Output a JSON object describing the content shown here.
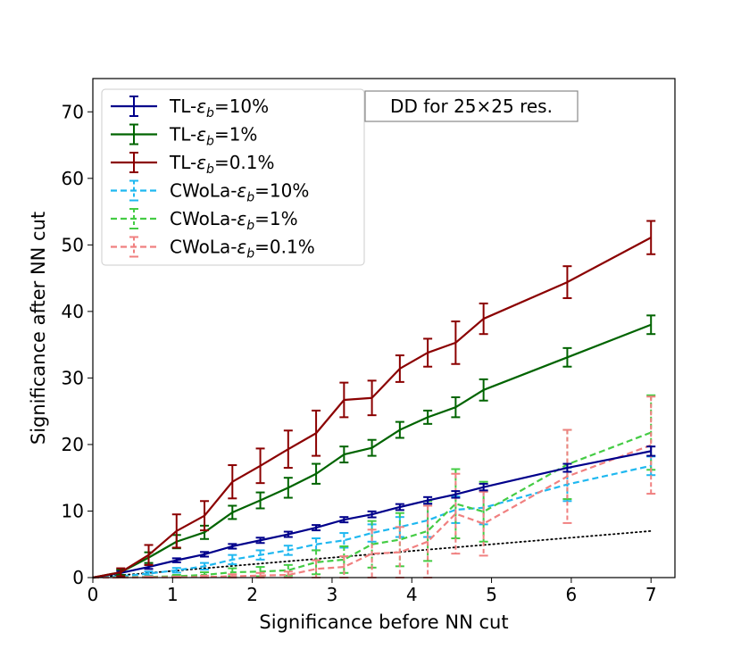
{
  "chart_data": {
    "type": "line",
    "title": "",
    "xlabel": "Significance before NN cut",
    "ylabel": "Significance after NN cut",
    "xlim": [
      0,
      7.3
    ],
    "ylim": [
      0,
      75
    ],
    "xticks": [
      0,
      1,
      2,
      3,
      4,
      5,
      6,
      7
    ],
    "yticks": [
      0,
      10,
      20,
      30,
      40,
      50,
      60,
      70
    ],
    "grid": false,
    "legend_position": "upper-left",
    "annotation": "DD for 25×25 res.",
    "x": [
      0.35,
      0.7,
      1.05,
      1.4,
      1.75,
      2.1,
      2.45,
      2.8,
      3.15,
      3.5,
      3.85,
      4.2,
      4.55,
      4.9,
      5.95,
      7.0
    ],
    "series": [
      {
        "name": "TL-",
        "eps": "b",
        "suffix": "=10%",
        "color": "#00008b",
        "style": "solid",
        "values": [
          0.7,
          1.6,
          2.6,
          3.5,
          4.7,
          5.6,
          6.5,
          7.5,
          8.7,
          9.5,
          10.6,
          11.6,
          12.5,
          13.6,
          16.5,
          19.0
        ],
        "errors": [
          0.3,
          0.3,
          0.3,
          0.35,
          0.35,
          0.4,
          0.4,
          0.4,
          0.4,
          0.45,
          0.45,
          0.5,
          0.5,
          0.5,
          0.6,
          0.7
        ]
      },
      {
        "name": "TL-",
        "eps": "b",
        "suffix": "=1%",
        "color": "#006400",
        "style": "solid",
        "values": [
          0.8,
          3.0,
          5.4,
          6.8,
          9.8,
          11.6,
          13.5,
          15.6,
          18.5,
          19.5,
          22.2,
          24.1,
          25.6,
          28.2,
          33.1,
          38.0
        ],
        "errors": [
          0.4,
          0.8,
          1.0,
          1.0,
          1.0,
          1.2,
          1.5,
          1.5,
          1.2,
          1.2,
          1.2,
          1.0,
          1.5,
          1.6,
          1.4,
          1.4
        ]
      },
      {
        "name": "TL-",
        "eps": "b",
        "suffix": "=0.1%",
        "color": "#8b0000",
        "style": "solid",
        "values": [
          0.8,
          3.4,
          7.0,
          9.3,
          14.4,
          16.8,
          19.3,
          21.7,
          26.7,
          27.0,
          31.4,
          33.8,
          35.3,
          38.9,
          44.4,
          51.1
        ],
        "errors": [
          0.6,
          1.5,
          2.5,
          2.2,
          2.5,
          2.6,
          2.8,
          3.4,
          2.6,
          2.6,
          2.0,
          2.1,
          3.2,
          2.3,
          2.4,
          2.5
        ]
      },
      {
        "name": "CWoLa-",
        "eps": "b",
        "suffix": "=10%",
        "color": "#1fb8f0",
        "style": "dashed",
        "values": [
          0.2,
          0.6,
          1.1,
          1.7,
          2.7,
          3.4,
          4.1,
          5.0,
          5.6,
          6.7,
          7.6,
          8.6,
          10.2,
          10.5,
          14.0,
          16.8
        ],
        "errors": [
          0.2,
          0.3,
          0.35,
          0.5,
          0.7,
          0.7,
          0.7,
          0.9,
          1.1,
          1.3,
          1.5,
          2.5,
          2.0,
          2.5,
          2.5,
          1.4
        ]
      },
      {
        "name": "CWoLa-",
        "eps": "b",
        "suffix": "=1%",
        "color": "#44cc44",
        "style": "dashed",
        "values": [
          0.05,
          0.1,
          0.2,
          0.4,
          0.8,
          0.9,
          1.1,
          2.3,
          2.7,
          5.0,
          5.7,
          7.0,
          11.1,
          9.9,
          17.0,
          21.8
        ],
        "errors": [
          0.1,
          0.1,
          0.2,
          0.4,
          0.6,
          0.7,
          0.8,
          1.8,
          2.0,
          3.5,
          4.0,
          4.5,
          5.2,
          4.5,
          5.2,
          5.6
        ]
      },
      {
        "name": "CWoLa-",
        "eps": "b",
        "suffix": "=0.1%",
        "color": "#f08080",
        "style": "dashed",
        "values": [
          0.0,
          0.05,
          0.05,
          0.1,
          0.2,
          0.3,
          0.4,
          1.3,
          1.6,
          3.6,
          3.8,
          5.4,
          9.6,
          8.1,
          15.2,
          19.9
        ],
        "errors": [
          0.1,
          0.1,
          0.1,
          0.2,
          0.3,
          0.4,
          0.5,
          1.3,
          1.6,
          3.6,
          3.8,
          5.4,
          6.0,
          4.8,
          7.0,
          7.3
        ]
      }
    ],
    "reference_line": {
      "color": "#000000",
      "style": "dotted",
      "x": [
        0,
        7
      ],
      "y": [
        0,
        7
      ]
    }
  }
}
